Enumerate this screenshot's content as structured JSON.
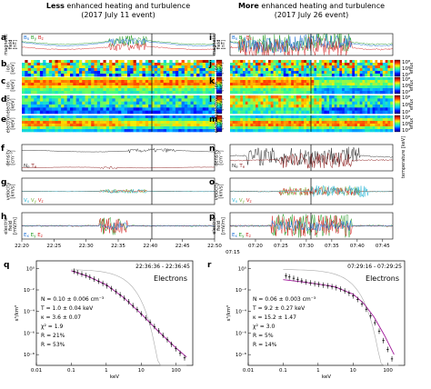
{
  "left_column": {
    "title_bold": "Less",
    "title_rest": " enhanced heating and turbulence",
    "subtitle": "(2017 July 11 event)",
    "time_ticks": [
      "22:20",
      "22:25",
      "22:30",
      "22:35",
      "22:40",
      "22:45",
      "22:50"
    ],
    "panel_letters": [
      "a",
      "b",
      "c",
      "d",
      "e",
      "f",
      "g",
      "h"
    ]
  },
  "right_column": {
    "title_bold": "More",
    "title_rest": " enhanced heating and turbulence",
    "subtitle": "(2017 July 26 event)",
    "time_ticks": [
      "07:20",
      "07:25",
      "07:30",
      "07:35",
      "07:40",
      "07:45"
    ],
    "time_ticks_sub": [
      "07:15"
    ],
    "panel_letters": [
      "i",
      "j",
      "k",
      "l",
      "m",
      "n",
      "o",
      "p"
    ]
  },
  "ylabels": {
    "magnetic": [
      "magnetic",
      "field",
      "[nT]"
    ],
    "ion": [
      "ion",
      "[keV]"
    ],
    "elec": [
      "electron",
      "[keV]"
    ],
    "density": [
      "density",
      "[cm⁻³]"
    ],
    "velocity": [
      "velocity",
      "[km/s]"
    ],
    "efield": [
      "electric",
      "field",
      "[mV/m]"
    ],
    "temperature": "temperature [keV]"
  },
  "colorbar_label": "eflux",
  "colorbar_ticks": [
    "10⁸",
    "10⁶",
    "10⁴"
  ],
  "legends": {
    "B": [
      "B",
      "B",
      "B"
    ],
    "B_subs": [
      "x",
      "y",
      "z"
    ],
    "N": "N",
    "N_sub": "e",
    "T": "T",
    "T_sub": "e",
    "V": [
      "V",
      "V",
      "V"
    ],
    "V_subs": [
      "x",
      "y",
      "z"
    ],
    "E": [
      "E",
      "E",
      "E"
    ],
    "E_subs": [
      "x",
      "y",
      "z"
    ]
  },
  "colors": {
    "x": "#1a6fd4",
    "y": "#2a9d2a",
    "z": "#d62828",
    "vx": "#29b6d6",
    "vy": "#7cb342",
    "dens": "#333333",
    "temp": "#8b1a1a"
  },
  "spectrum_left": {
    "letter": "q",
    "interval": "22:36:36 - 22:36:45",
    "species": "Electrons",
    "stats": [
      "N = 0.10 ± 0.006 cm⁻³",
      "T = 1.0 ± 0.04 keV",
      "κ = 3.6 ± 0.07",
      "χ² = 1.9",
      "R = 21%",
      "R = 53%"
    ],
    "stat_names": [
      "Nₑ",
      "Tₑ",
      "κ",
      "χ²ᵣ",
      "Rɴ",
      "Rₜ"
    ]
  },
  "spectrum_right": {
    "letter": "r",
    "interval": "07:29:16 - 07:29:25",
    "species": "Electrons",
    "stats": [
      "N = 0.06 ± 0.003 cm⁻³",
      "T = 9.2 ± 0.27 keV",
      "κ = 15.2 ± 1.47",
      "χ² = 3.0",
      "R = 5%",
      "R = 14%"
    ]
  },
  "spectrum_axes": {
    "xlabel": "keV",
    "ylabel": "s³/km⁶",
    "xticks": [
      "0.01",
      "0.1",
      "1",
      "10",
      "100"
    ],
    "yticks": [
      "10⁰",
      "10⁻²",
      "10⁻⁴",
      "10⁻⁶",
      "10⁻⁸"
    ]
  },
  "chart_data": [
    {
      "type": "scatter",
      "panel": "q",
      "xlabel": "keV",
      "ylabel": "s³/km⁶",
      "xscale": "log",
      "yscale": "log",
      "xlim": [
        0.01,
        300
      ],
      "ylim": [
        1e-09,
        5
      ],
      "series": [
        {
          "name": "data",
          "x": [
            0.12,
            0.15,
            0.2,
            0.26,
            0.34,
            0.45,
            0.6,
            0.8,
            1.05,
            1.4,
            1.9,
            2.5,
            3.3,
            4.4,
            5.8,
            7.7,
            10,
            13.5,
            18,
            24,
            32,
            42,
            56,
            74,
            98,
            130,
            175
          ],
          "y": [
            0.55,
            0.4,
            0.3,
            0.22,
            0.15,
            0.1,
            0.065,
            0.04,
            0.024,
            0.013,
            0.007,
            0.0035,
            0.0017,
            0.0008,
            0.00035,
            0.00015,
            6e-05,
            2.5e-05,
            1e-05,
            4e-06,
            1.6e-06,
            6e-07,
            2.4e-07,
            9e-08,
            3.5e-08,
            1.3e-08,
            5e-09
          ]
        },
        {
          "name": "fit",
          "x": [
            0.1,
            0.3,
            1,
            3,
            10,
            30,
            100,
            200
          ],
          "y": [
            0.6,
            0.18,
            0.03,
            0.0022,
            6e-05,
            1.6e-06,
            4e-08,
            6e-09
          ]
        }
      ]
    },
    {
      "type": "scatter",
      "panel": "r",
      "xlabel": "keV",
      "ylabel": "s³/km⁶",
      "xscale": "log",
      "yscale": "log",
      "xlim": [
        0.01,
        300
      ],
      "ylim": [
        1e-09,
        5
      ],
      "series": [
        {
          "name": "data",
          "x": [
            0.12,
            0.15,
            0.2,
            0.26,
            0.34,
            0.45,
            0.6,
            0.8,
            1.05,
            1.4,
            1.9,
            2.5,
            3.3,
            4.4,
            5.8,
            7.7,
            10,
            13.5,
            18,
            24,
            32,
            42,
            56,
            74,
            98,
            130
          ],
          "y": [
            0.2,
            0.16,
            0.12,
            0.09,
            0.07,
            0.055,
            0.045,
            0.038,
            0.033,
            0.028,
            0.024,
            0.02,
            0.016,
            0.012,
            0.008,
            0.005,
            0.0028,
            0.0013,
            0.0005,
            0.00016,
            4e-05,
            9e-06,
            1.5e-06,
            2e-07,
            3e-08,
            4e-09
          ]
        },
        {
          "name": "fit",
          "x": [
            0.1,
            0.3,
            1,
            3,
            10,
            20,
            40,
            80,
            150
          ],
          "y": [
            0.09,
            0.06,
            0.035,
            0.02,
            0.004,
            0.0006,
            3e-05,
            6e-07,
            1e-08
          ]
        }
      ]
    }
  ]
}
